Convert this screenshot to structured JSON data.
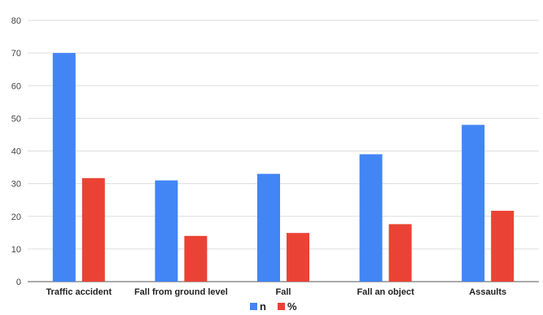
{
  "chart_data": {
    "type": "bar",
    "categories": [
      "Traffic accident",
      "Fall from ground level",
      "Fall",
      "Fall an object",
      "Assaults"
    ],
    "series": [
      {
        "name": "n",
        "color": "#4285f4",
        "values": [
          70,
          31,
          33,
          39,
          48
        ]
      },
      {
        "name": "%",
        "color": "#ea4335",
        "values": [
          31.7,
          14.0,
          14.9,
          17.6,
          21.7
        ]
      }
    ],
    "ylim": [
      0,
      80
    ],
    "yticks": [
      0,
      10,
      20,
      30,
      40,
      50,
      60,
      70,
      80
    ],
    "grid": true,
    "legend_position": "bottom"
  }
}
